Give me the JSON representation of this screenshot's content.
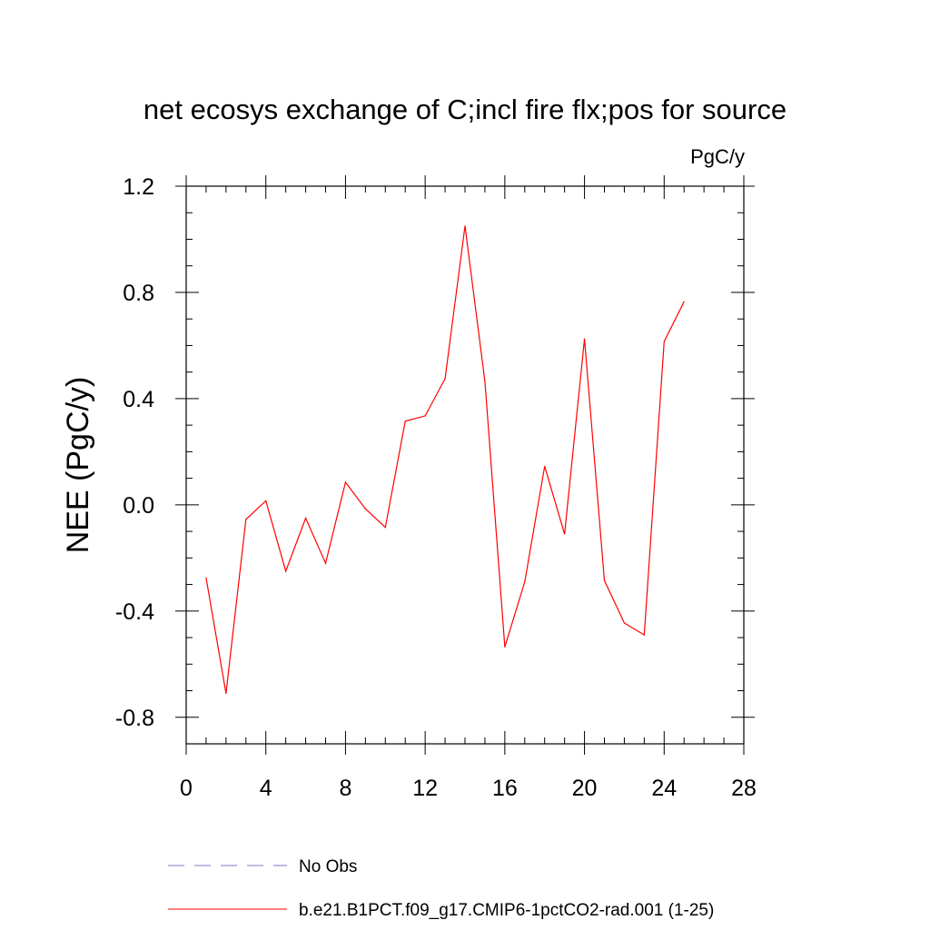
{
  "chart_data": {
    "type": "line",
    "title": "net ecosys exchange of C;incl fire flx;pos for source",
    "units_label": "PgC/y",
    "ylabel": "NEE  (PgC/y)",
    "xlabel": "",
    "xlim": [
      0,
      28
    ],
    "ylim": [
      -0.9,
      1.2
    ],
    "x_ticks": [
      "0",
      "4",
      "8",
      "12",
      "16",
      "20",
      "24",
      "28"
    ],
    "y_ticks": [
      "1.2",
      "0.8",
      "0.4",
      "0.0",
      "-0.4",
      "-0.8"
    ],
    "grid": false,
    "legend_position": "bottom",
    "series": [
      {
        "name": "No Obs",
        "color": "#7777cc",
        "dash": true,
        "x": [],
        "y": []
      },
      {
        "name": "b.e21.B1PCT.f09_g17.CMIP6-1pctCO2-rad.001 (1-25)",
        "color": "#ff0000",
        "dash": false,
        "x": [
          1,
          2,
          3,
          4,
          5,
          6,
          7,
          8,
          9,
          10,
          11,
          12,
          13,
          14,
          15,
          16,
          17,
          18,
          19,
          20,
          21,
          22,
          23,
          24,
          25
        ],
        "y": [
          -0.275,
          -0.71,
          -0.055,
          0.015,
          -0.25,
          -0.05,
          -0.22,
          0.085,
          -0.015,
          -0.085,
          0.315,
          0.335,
          0.475,
          1.05,
          0.465,
          -0.535,
          -0.29,
          0.145,
          -0.11,
          0.625,
          -0.285,
          -0.445,
          -0.49,
          0.615,
          0.765
        ]
      }
    ]
  }
}
